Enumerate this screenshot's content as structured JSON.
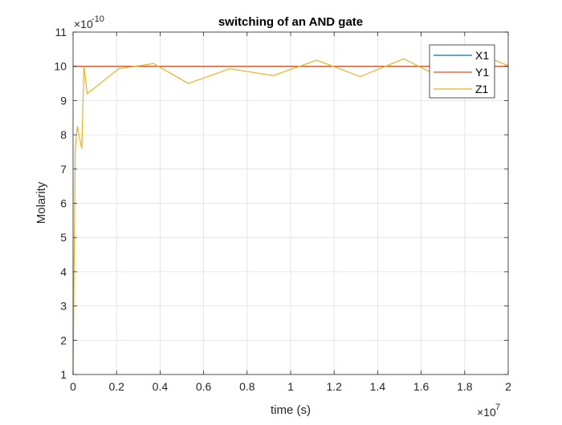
{
  "chart_data": {
    "type": "line",
    "title": "switching of an AND gate",
    "xlabel": "time (s)",
    "ylabel": "Molarity",
    "x_exponent_label": "×10",
    "x_exponent": "7",
    "y_exponent_label": "×10",
    "y_exponent": "-10",
    "xlim": [
      0,
      2
    ],
    "ylim": [
      1,
      11
    ],
    "x_ticks": [
      0,
      0.2,
      0.4,
      0.6,
      0.8,
      1,
      1.2,
      1.4,
      1.6,
      1.8,
      2
    ],
    "x_tick_labels": [
      "0",
      "0.2",
      "0.4",
      "0.6",
      "0.8",
      "1",
      "1.2",
      "1.4",
      "1.6",
      "1.8",
      "2"
    ],
    "y_ticks": [
      1,
      2,
      3,
      4,
      5,
      6,
      7,
      8,
      9,
      10,
      11
    ],
    "y_tick_labels": [
      "1",
      "2",
      "3",
      "4",
      "5",
      "6",
      "7",
      "8",
      "9",
      "10",
      "11"
    ],
    "grid": true,
    "legend_position": "top-right",
    "series": [
      {
        "name": "X1",
        "color": "#0072bd",
        "x": [
          0,
          2
        ],
        "y": [
          10,
          10
        ]
      },
      {
        "name": "Y1",
        "color": "#d95319",
        "x": [
          0,
          2
        ],
        "y": [
          10,
          10
        ]
      },
      {
        "name": "Z1",
        "color": "#edb120",
        "x": [
          0,
          0.003,
          0.01,
          0.02,
          0.03,
          0.04,
          0.05,
          0.065,
          0.21,
          0.37,
          0.53,
          0.72,
          0.92,
          1.12,
          1.32,
          1.52,
          1.72,
          1.92,
          2.0
        ],
        "y": [
          1.0,
          3.0,
          7.6,
          8.25,
          7.9,
          7.6,
          10.0,
          9.2,
          9.93,
          10.08,
          9.5,
          9.93,
          9.73,
          10.18,
          9.7,
          10.22,
          9.58,
          10.22,
          10.02
        ]
      }
    ]
  }
}
